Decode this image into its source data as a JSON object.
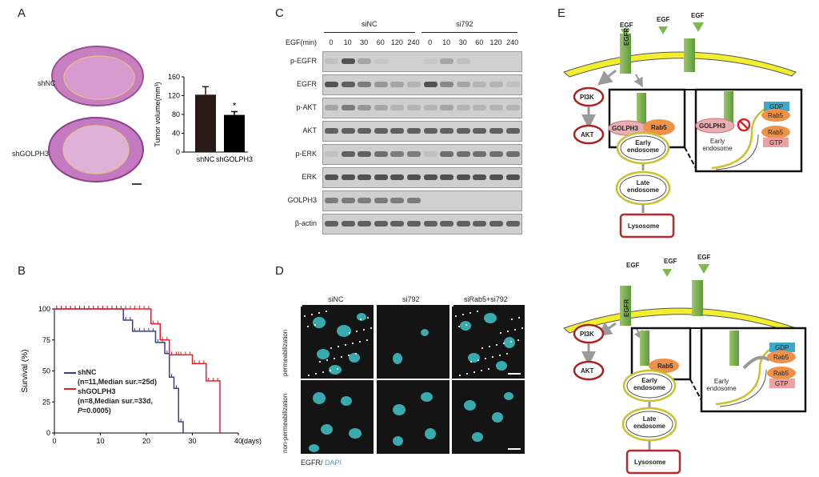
{
  "panels": {
    "A": "A",
    "B": "B",
    "C": "C",
    "D": "D",
    "E": "E"
  },
  "panelA": {
    "sample1": "shNC",
    "sample2": "shGOLPH3",
    "chart_data": {
      "type": "bar",
      "categories": [
        "shNC",
        "shGOLPH3"
      ],
      "values": [
        122,
        79
      ],
      "errors": [
        17,
        7
      ],
      "ylabel": "Tumor volume(mm³)",
      "ylim": [
        0,
        160
      ],
      "yticks": [
        "0",
        "40",
        "80",
        "120",
        "160"
      ],
      "annotation": "*",
      "colors": [
        "#2a1a15",
        "#000000"
      ]
    }
  },
  "panelB": {
    "chart_data": {
      "type": "line",
      "ylabel": "Survival (%)",
      "xlabel": "(days)",
      "xticks": [
        "0",
        "10",
        "20",
        "30",
        "40"
      ],
      "yticks": [
        "0",
        "25",
        "50",
        "75",
        "100"
      ],
      "xlim": [
        0,
        40
      ],
      "ylim": [
        0,
        100
      ],
      "series": [
        {
          "name": "shNC",
          "color": "#3c3d8f",
          "x": [
            0,
            15,
            15,
            17,
            17,
            22,
            22,
            24,
            24,
            25,
            25,
            26,
            26,
            27,
            27,
            28,
            28
          ],
          "y": [
            100,
            100,
            91,
            91,
            82,
            82,
            73,
            73,
            64,
            64,
            45,
            45,
            36,
            36,
            9,
            9,
            0
          ]
        },
        {
          "name": "shGOLPH3",
          "color": "#e32228",
          "x": [
            0,
            21,
            21,
            23,
            23,
            25,
            25,
            27,
            27,
            30,
            30,
            33,
            33,
            36,
            36
          ],
          "y": [
            100,
            100,
            88,
            88,
            75,
            75,
            63,
            63,
            63,
            63,
            56,
            56,
            42,
            42,
            0
          ]
        }
      ]
    },
    "legend": {
      "line1": "shNC",
      "line2": "(n=11,Median sur.=25d)",
      "line3": "shGOLPH3",
      "line4": "(n=8,Median sur.=33d,",
      "line5_italic": "P",
      "line5_rest": "=0.0005)"
    }
  },
  "panelC": {
    "group1": "siNC",
    "group2": "si792",
    "egf_label": "EGF(min)",
    "timepoints": [
      "0",
      "10",
      "30",
      "60",
      "120",
      "240",
      "0",
      "10",
      "30",
      "60",
      "120",
      "240"
    ],
    "rows": [
      "p-EGFR",
      "EGFR",
      "p-AKT",
      "AKT",
      "p-ERK",
      "ERK",
      "GOLPH3",
      "β-actin"
    ]
  },
  "panelD": {
    "cols": [
      "siNC",
      "si792",
      "siRab5+si792"
    ],
    "row1": "permeabilization",
    "row2": "non-permeabilization",
    "stain1": "EGFR/",
    "stain2": "DAPI",
    "colors": {
      "dapi": "#3fc6c9",
      "egfr": "#ffffff"
    }
  },
  "panelE": {
    "top": {
      "egf": [
        "EGF",
        "EGF",
        "EGF"
      ],
      "egfr": "EGFR",
      "pi3k": "PI3K",
      "akt": "AKT",
      "golph3": "GOLPH3",
      "rab5": "Rab5",
      "early": "Early endosome",
      "late": "Late endosome",
      "lysosome": "Lysosome",
      "gdp": "GDP",
      "gtp": "GTP"
    },
    "bottom": {
      "egf": [
        "EGF",
        "EGF",
        "EGF"
      ],
      "egfr": "EGFR",
      "pi3k": "PI3K",
      "akt": "AKT",
      "rab5": "Rab5",
      "early": "Early endosome",
      "late": "Late endosome",
      "lysosome": "Lysosome",
      "gdp": "GDP",
      "gtp": "GTP"
    }
  }
}
